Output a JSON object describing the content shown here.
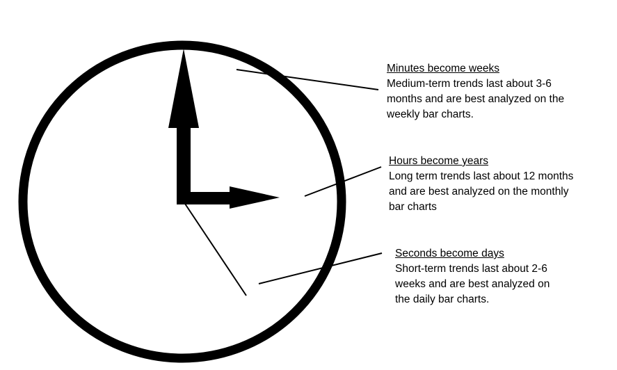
{
  "clock": {
    "face_color": "#ffffff",
    "stroke_color": "#000000"
  },
  "callouts": {
    "minutes": {
      "title": "Minutes become weeks",
      "lines": [
        "Medium-term trends last about 3-6",
        "months and are best analyzed on the",
        "weekly bar charts."
      ]
    },
    "hours": {
      "title": "Hours become years",
      "lines": [
        "Long term trends last about 12 months",
        "and are best analyzed on the monthly",
        "bar charts"
      ]
    },
    "seconds": {
      "title": "Seconds become days",
      "lines": [
        "Short-term trends last about 2-6",
        "weeks and are best analyzed on",
        "the daily bar charts."
      ]
    }
  }
}
